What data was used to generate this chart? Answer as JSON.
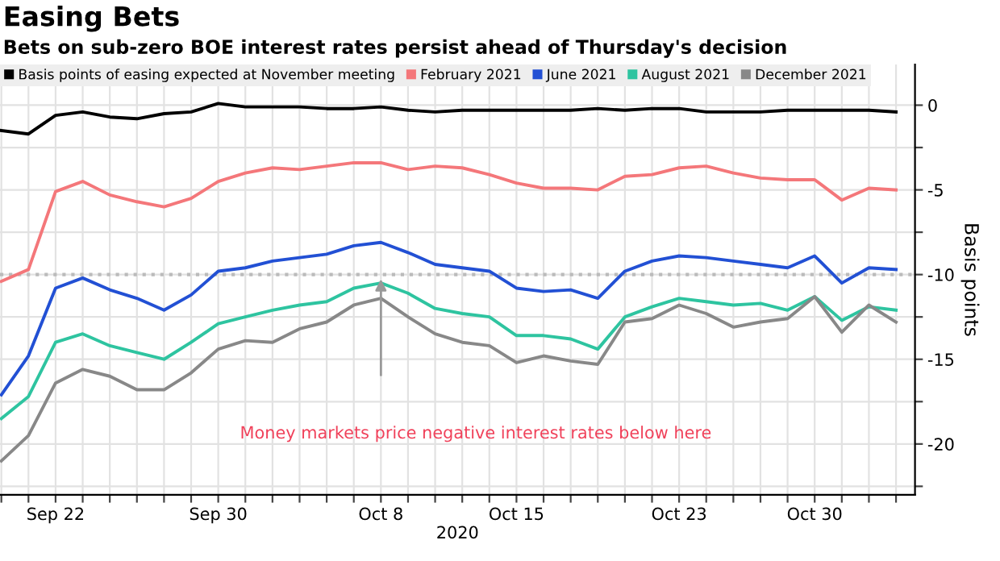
{
  "chart_data": {
    "type": "line",
    "title": "Easing Bets",
    "subtitle": "Bets on sub-zero BOE interest rates persist ahead of Thursday's decision",
    "xlabel": "2020",
    "ylabel": "Basis points",
    "categories": [
      null,
      null,
      "Sep 22",
      null,
      null,
      null,
      null,
      null,
      "Sep 30",
      null,
      null,
      null,
      null,
      null,
      "Oct 8",
      null,
      null,
      null,
      null,
      "Oct 15",
      null,
      null,
      null,
      null,
      null,
      "Oct 23",
      null,
      null,
      null,
      null,
      "Oct 30",
      null,
      null,
      null
    ],
    "series": [
      {
        "name": "Basis points of easing expected at November meeting",
        "color": "#000000",
        "values": [
          -1.5,
          -1.7,
          -0.6,
          -0.4,
          -0.7,
          -0.8,
          -0.5,
          -0.4,
          0.1,
          -0.1,
          -0.1,
          -0.1,
          -0.2,
          -0.2,
          -0.1,
          -0.3,
          -0.4,
          -0.3,
          -0.3,
          -0.3,
          -0.3,
          -0.3,
          -0.2,
          -0.3,
          -0.2,
          -0.2,
          -0.4,
          -0.4,
          -0.4,
          -0.3,
          -0.3,
          -0.3,
          -0.3,
          -0.4
        ]
      },
      {
        "name": "February 2021",
        "color": "#f4777a",
        "values": [
          -10.4,
          -9.7,
          -5.1,
          -4.5,
          -5.3,
          -5.7,
          -6.0,
          -5.5,
          -4.5,
          -4.0,
          -3.7,
          -3.8,
          -3.6,
          -3.4,
          -3.4,
          -3.8,
          -3.6,
          -3.7,
          -4.1,
          -4.6,
          -4.9,
          -4.9,
          -5.0,
          -4.2,
          -4.1,
          -3.7,
          -3.6,
          -4.0,
          -4.3,
          -4.4,
          -4.4,
          -5.6,
          -4.9,
          -5.0
        ]
      },
      {
        "name": "June 2021",
        "color": "#2250d4",
        "values": [
          -17.1,
          -14.8,
          -10.8,
          -10.2,
          -10.9,
          -11.4,
          -12.1,
          -11.2,
          -9.8,
          -9.6,
          -9.2,
          -9.0,
          -8.8,
          -8.3,
          -8.1,
          -8.7,
          -9.4,
          -9.6,
          -9.8,
          -10.8,
          -11.0,
          -10.9,
          -11.4,
          -9.8,
          -9.2,
          -8.9,
          -9.0,
          -9.2,
          -9.4,
          -9.6,
          -8.9,
          -10.5,
          -9.6,
          -9.7
        ]
      },
      {
        "name": "August 2021",
        "color": "#2ec4a0",
        "values": [
          -18.5,
          -17.2,
          -14.0,
          -13.5,
          -14.2,
          -14.6,
          -15.0,
          -14.0,
          -12.9,
          -12.5,
          -12.1,
          -11.8,
          -11.6,
          -10.8,
          -10.5,
          -11.1,
          -12.0,
          -12.3,
          -12.5,
          -13.6,
          -13.6,
          -13.8,
          -14.4,
          -12.5,
          -11.9,
          -11.4,
          -11.6,
          -11.8,
          -11.7,
          -12.1,
          -11.3,
          -12.7,
          -11.9,
          -12.1
        ]
      },
      {
        "name": "December 2021",
        "color": "#888888",
        "values": [
          -21.0,
          -19.5,
          -16.4,
          -15.6,
          -16.0,
          -16.8,
          -16.8,
          -15.8,
          -14.4,
          -13.9,
          -14.0,
          -13.2,
          -12.8,
          -11.8,
          -11.4,
          -12.5,
          -13.5,
          -14.0,
          -14.2,
          -15.2,
          -14.8,
          -15.1,
          -15.3,
          -12.8,
          -12.6,
          -11.8,
          -12.3,
          -13.1,
          -12.8,
          -12.6,
          -11.3,
          -13.4,
          -11.8,
          -12.8
        ]
      }
    ],
    "ylim": [
      -23,
      2.4
    ],
    "yticks": [
      0,
      {
        "value": -2.5,
        "label": null
      },
      -5,
      {
        "value": -7.5,
        "label": null
      },
      -10,
      {
        "value": -12.5,
        "label": null
      },
      -15,
      {
        "value": -17.5,
        "label": null
      },
      -20,
      {
        "value": -22.5,
        "label": null
      }
    ],
    "ref_lines": [
      {
        "axis": "y",
        "value": -10,
        "color": "#bbbbbb",
        "line_style": "dotted"
      }
    ],
    "annotations": [
      "Money markets price negative interest rates below here"
    ],
    "grid": true,
    "legend": "top",
    "marker": "none",
    "line_style": "solid"
  }
}
